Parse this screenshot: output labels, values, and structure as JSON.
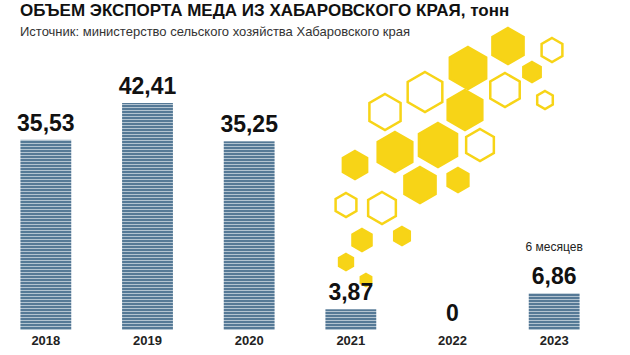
{
  "chart_data": {
    "type": "bar",
    "title": "ОБЪЕМ ЭКСПОРТА МЕДА ИЗ ХАБАРОВСКОГО КРАЯ, тонн",
    "subtitle": "Источник: министерство сельского хозяйства Хабаровского края",
    "categories": [
      "2018",
      "2019",
      "2020",
      "2021",
      "2022",
      "2023"
    ],
    "values": [
      35.53,
      42.41,
      35.25,
      3.87,
      0,
      6.86
    ],
    "value_labels": [
      "35,53",
      "42,41",
      "35,25",
      "3,87",
      "0",
      "6,86"
    ],
    "annotations": [
      "6 месяцев"
    ],
    "color": "#557996",
    "data_labels": true,
    "tick_labels": "x",
    "grid": false
  }
}
